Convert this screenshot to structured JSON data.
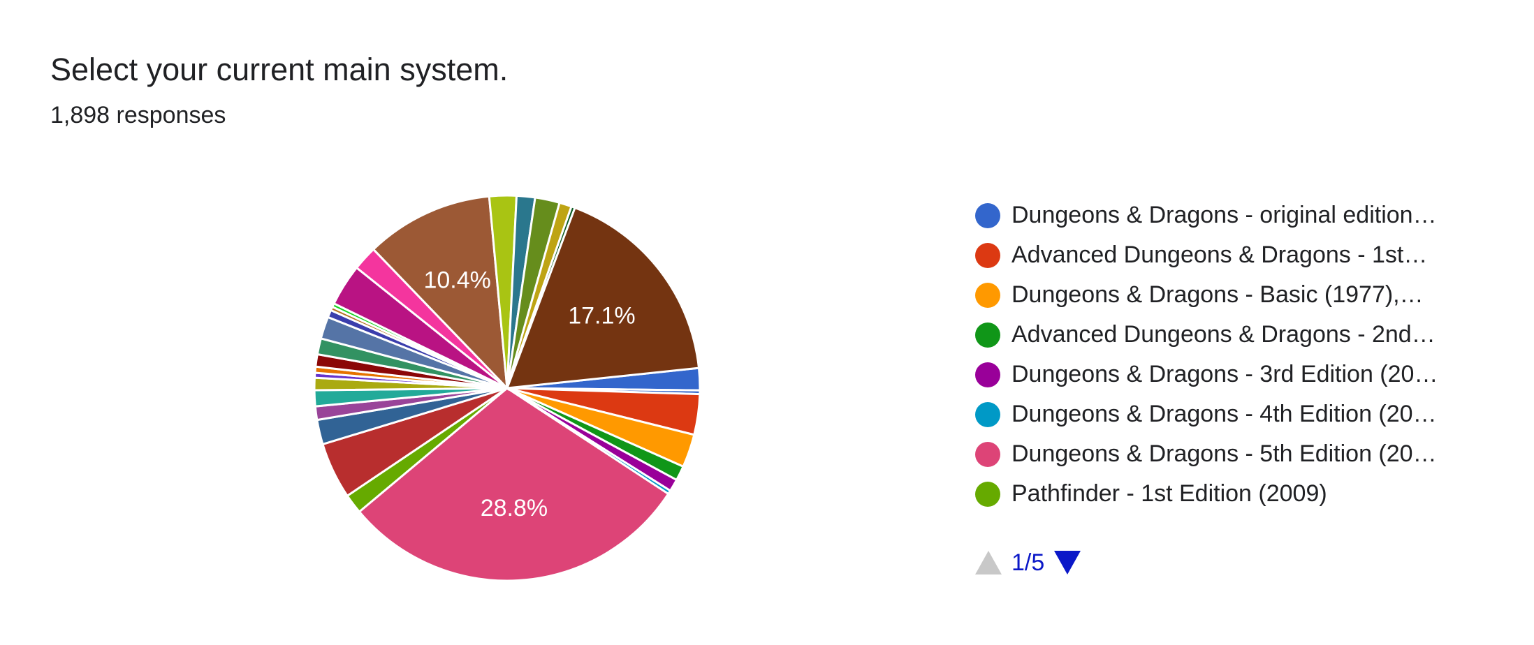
{
  "header": {
    "title": "Select your current main system.",
    "responses": "1,898 responses"
  },
  "chart_data": {
    "type": "pie",
    "title": "Select your current main system.",
    "labels": [
      "Dungeons & Dragons - original edition…",
      "Advanced Dungeons & Dragons - 1st…",
      "Dungeons & Dragons - Basic (1977),…",
      "Advanced Dungeons & Dragons - 2nd…",
      "Dungeons & Dragons - 3rd Edition (20…",
      "Dungeons & Dragons - 4th Edition (20…",
      "Dungeons & Dragons - 5th Edition (20…",
      "Pathfinder - 1st Edition (2009)"
    ],
    "slices": [
      {
        "name": "Dungeons & Dragons - original edition…",
        "percent": 1.8,
        "color": "#3366cc"
      },
      {
        "name": "",
        "percent": 0.3,
        "color": "#3366cc"
      },
      {
        "name": "Advanced Dungeons & Dragons - 1st…",
        "percent": 3.3,
        "color": "#dc3912"
      },
      {
        "name": "Dungeons & Dragons - Basic (1977),…",
        "percent": 2.7,
        "color": "#ff9900"
      },
      {
        "name": "Advanced Dungeons & Dragons - 2nd…",
        "percent": 1.2,
        "color": "#109618"
      },
      {
        "name": "Dungeons & Dragons - 3rd Edition (20…",
        "percent": 1.0,
        "color": "#990099"
      },
      {
        "name": "Dungeons & Dragons - 4th Edition (20…",
        "percent": 0.3,
        "color": "#0099c6"
      },
      {
        "name": "Dungeons & Dragons - 5th Edition (20…",
        "percent": 28.8,
        "color": "#dd4477",
        "label": "28.8%"
      },
      {
        "name": "Pathfinder - 1st Edition (2009)",
        "percent": 1.6,
        "color": "#66aa00"
      },
      {
        "name": "",
        "percent": 4.6,
        "color": "#b82e2e"
      },
      {
        "name": "",
        "percent": 2.0,
        "color": "#316395"
      },
      {
        "name": "",
        "percent": 1.1,
        "color": "#994499"
      },
      {
        "name": "",
        "percent": 1.3,
        "color": "#22aa99"
      },
      {
        "name": "",
        "percent": 1.0,
        "color": "#aaaa11"
      },
      {
        "name": "",
        "percent": 0.4,
        "color": "#6633cc"
      },
      {
        "name": "",
        "percent": 0.5,
        "color": "#e67300"
      },
      {
        "name": "",
        "percent": 1.0,
        "color": "#8b0707"
      },
      {
        "name": "",
        "percent": 1.3,
        "color": "#329262"
      },
      {
        "name": "",
        "percent": 1.8,
        "color": "#5574a6"
      },
      {
        "name": "",
        "percent": 0.6,
        "color": "#3b3eac"
      },
      {
        "name": "",
        "percent": 0.3,
        "color": "#b77322"
      },
      {
        "name": "",
        "percent": 0.3,
        "color": "#16d620"
      },
      {
        "name": "",
        "percent": 3.4,
        "color": "#b91383"
      },
      {
        "name": "",
        "percent": 2.0,
        "color": "#f4359e"
      },
      {
        "name": "",
        "percent": 10.4,
        "color": "#9c5935",
        "label": "10.4%"
      },
      {
        "name": "",
        "percent": 2.2,
        "color": "#a9c413"
      },
      {
        "name": "",
        "percent": 1.5,
        "color": "#2a778d"
      },
      {
        "name": "",
        "percent": 2.0,
        "color": "#668d1c"
      },
      {
        "name": "",
        "percent": 1.0,
        "color": "#bea413"
      },
      {
        "name": "",
        "percent": 0.3,
        "color": "#0c5922"
      },
      {
        "name": "",
        "percent": 17.1,
        "color": "#743411",
        "label": "17.1%"
      }
    ]
  },
  "legend": {
    "items": [
      {
        "label": "Dungeons & Dragons - original edition…",
        "color": "#3366cc"
      },
      {
        "label": "Advanced Dungeons & Dragons - 1st…",
        "color": "#dc3912"
      },
      {
        "label": "Dungeons & Dragons - Basic (1977),…",
        "color": "#ff9900"
      },
      {
        "label": "Advanced Dungeons & Dragons - 2nd…",
        "color": "#109618"
      },
      {
        "label": "Dungeons & Dragons - 3rd Edition (20…",
        "color": "#990099"
      },
      {
        "label": "Dungeons & Dragons - 4th Edition (20…",
        "color": "#0099c6"
      },
      {
        "label": "Dungeons & Dragons - 5th Edition (20…",
        "color": "#dd4477"
      },
      {
        "label": "Pathfinder - 1st Edition (2009)",
        "color": "#66aa00"
      }
    ]
  },
  "pager": {
    "text": "1/5",
    "up_icon": "arrow-up-icon",
    "down_icon": "arrow-down-icon",
    "active_color": "#0b18c8",
    "disabled_color": "#c8c8c8"
  }
}
